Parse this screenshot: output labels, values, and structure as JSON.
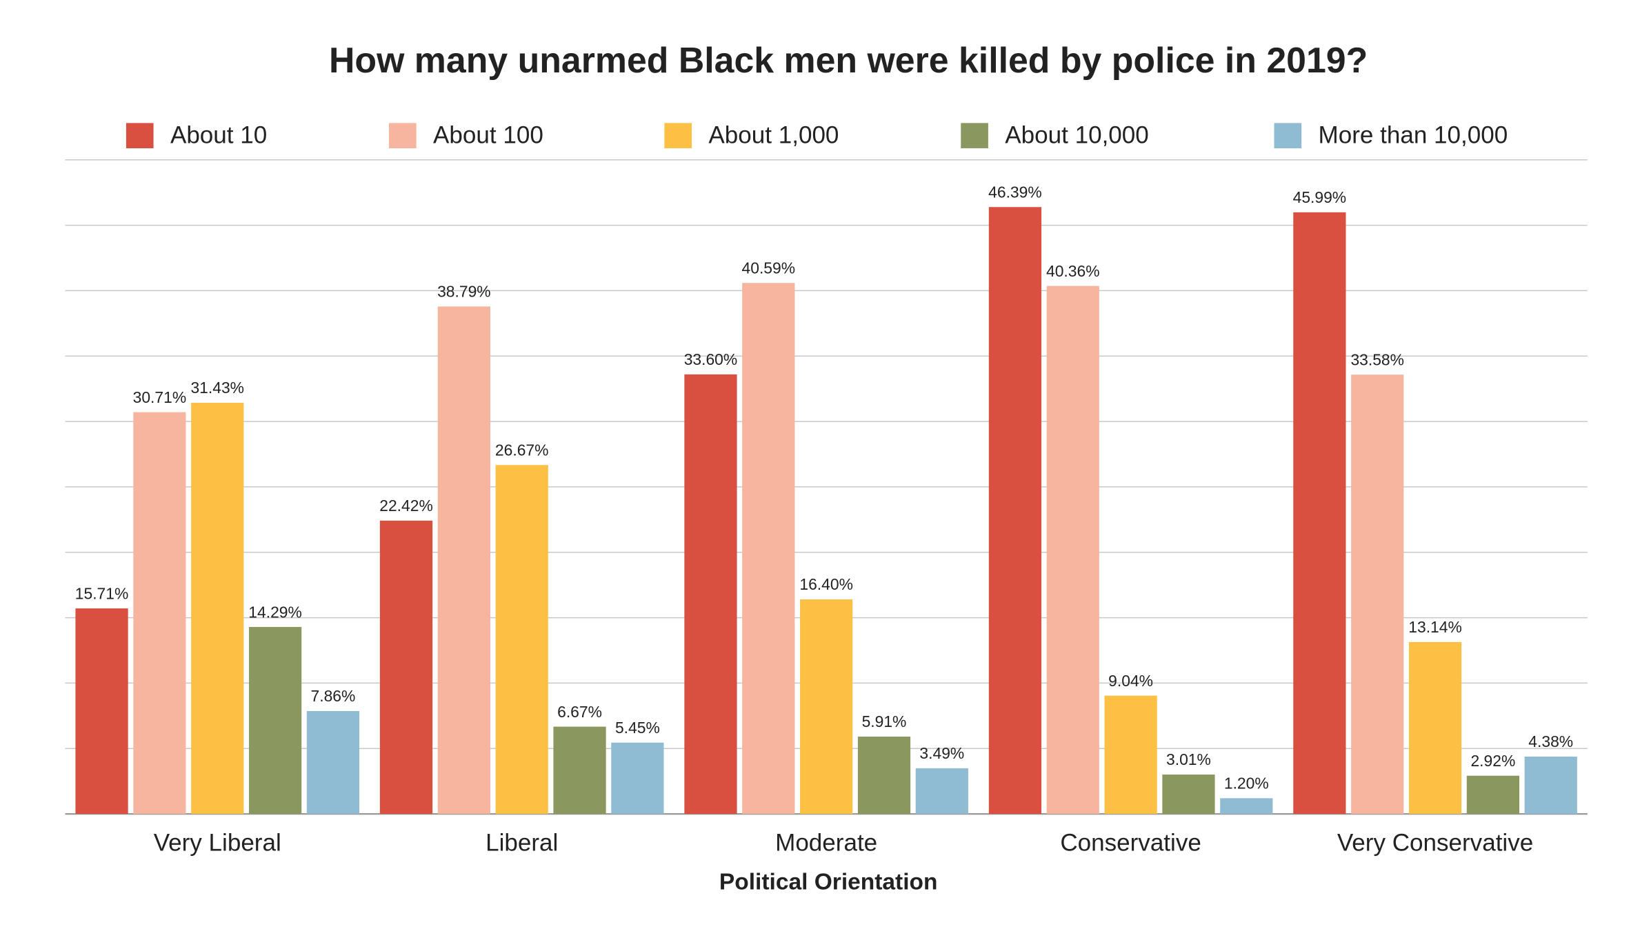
{
  "chart_data": {
    "type": "bar",
    "title": "How many unarmed Black men were killed by police in 2019?",
    "x_label": "Political Orientation",
    "categories": [
      "Very Liberal",
      "Liberal",
      "Moderate",
      "Conservative",
      "Very Conservative"
    ],
    "series": [
      {
        "name": "About 10",
        "color": "#d95040",
        "values": [
          15.71,
          22.42,
          33.6,
          46.39,
          45.99
        ],
        "value_labels": [
          "15.71%",
          "22.42%",
          "33.60%",
          "46.39%",
          "45.99%"
        ]
      },
      {
        "name": "About 100",
        "color": "#f7b49e",
        "values": [
          30.71,
          38.79,
          40.59,
          40.36,
          33.58
        ],
        "value_labels": [
          "30.71%",
          "38.79%",
          "40.59%",
          "40.36%",
          "33.58%"
        ]
      },
      {
        "name": "About 1,000",
        "color": "#fcc144",
        "values": [
          31.43,
          26.67,
          16.4,
          9.04,
          13.14
        ],
        "value_labels": [
          "31.43%",
          "26.67%",
          "16.40%",
          "9.04%",
          "13.14%"
        ]
      },
      {
        "name": "About 10,000",
        "color": "#8a975e",
        "values": [
          14.29,
          6.67,
          5.91,
          3.01,
          2.92
        ],
        "value_labels": [
          "14.29%",
          "6.67%",
          "5.91%",
          "3.01%",
          "2.92%"
        ]
      },
      {
        "name": "More than 10,000",
        "color": "#8fbbd3",
        "values": [
          7.86,
          5.45,
          3.49,
          1.2,
          4.38
        ],
        "value_labels": [
          "7.86%",
          "5.45%",
          "3.49%",
          "1.20%",
          "4.38%"
        ]
      }
    ],
    "ylim": [
      0,
      50
    ],
    "yticks": [
      0,
      5,
      10,
      15,
      20,
      25,
      30,
      35,
      40,
      45,
      50
    ],
    "grid": true,
    "legend": "top"
  }
}
